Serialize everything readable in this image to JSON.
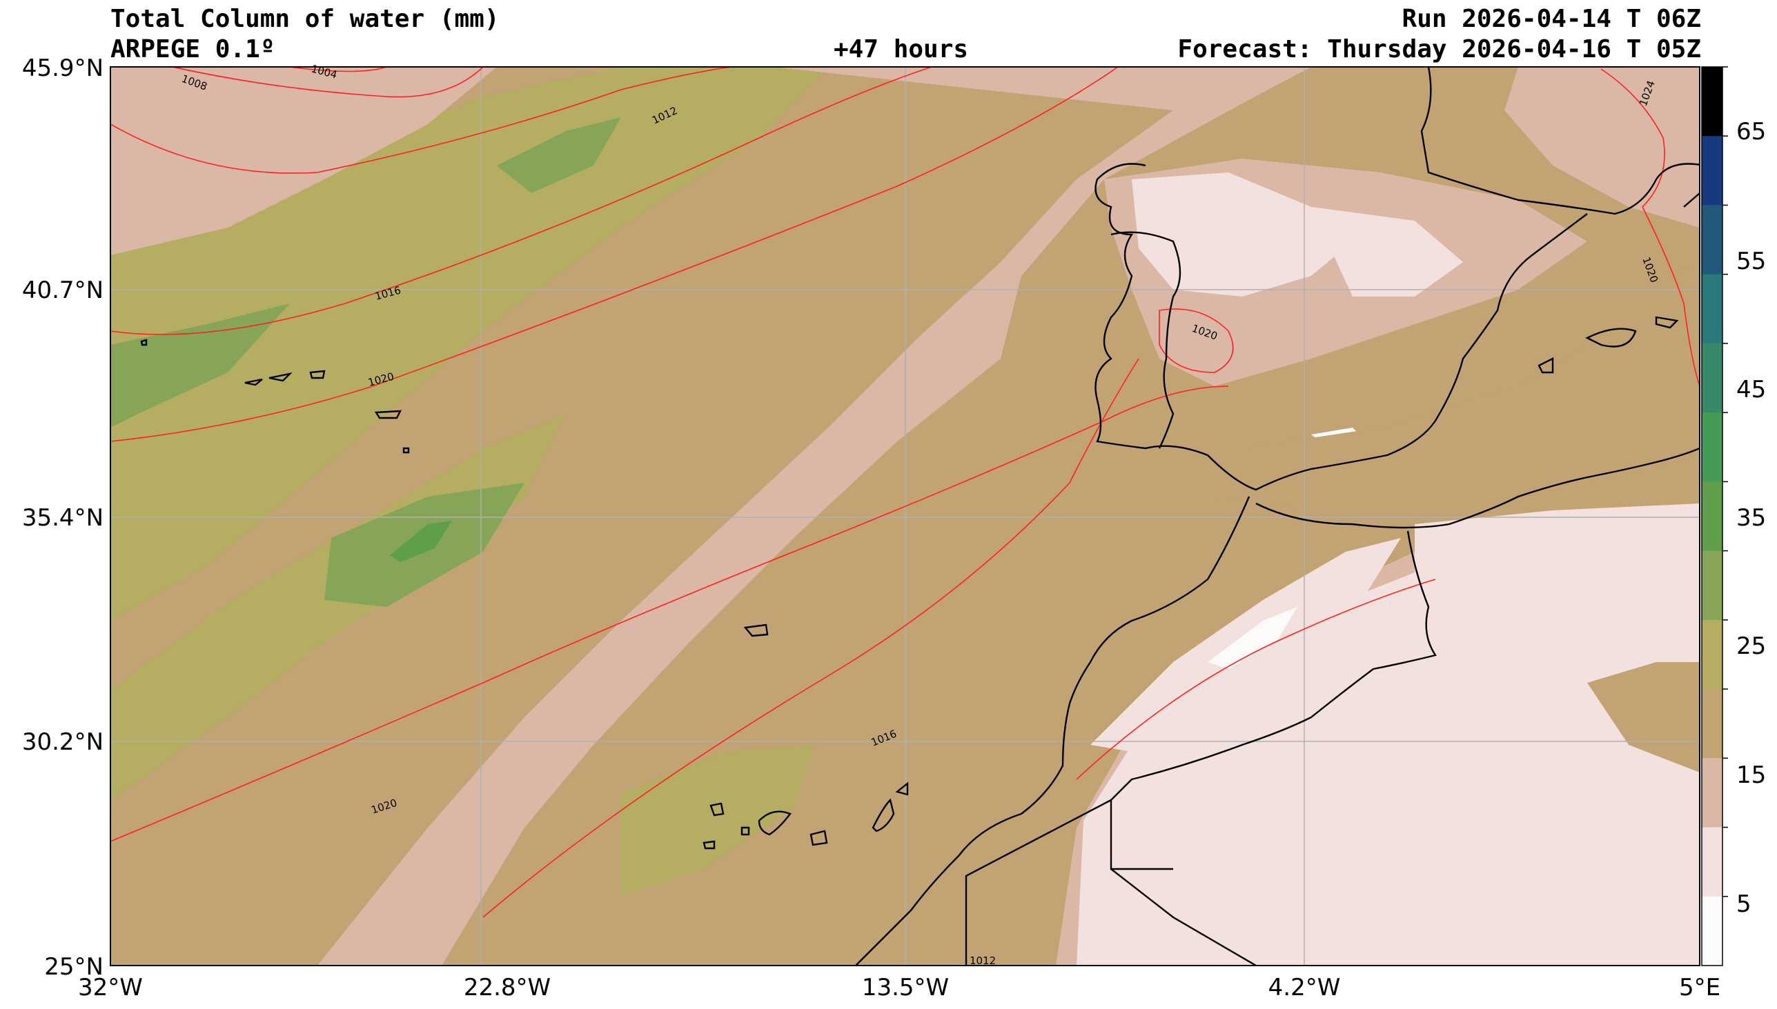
{
  "header": {
    "title": "Total Column of water (mm)",
    "model": "ARPEGE 0.1º",
    "lead": "+47 hours",
    "run": "Run 2026-04-14 T 06Z",
    "forecast": "Forecast: Thursday 2026-04-16 T 05Z"
  },
  "axes": {
    "lat_labels": [
      "45.9°N",
      "40.7°N",
      "35.4°N",
      "30.2°N",
      "25°N"
    ],
    "lon_labels": [
      "32°W",
      "22.8°W",
      "13.5°W",
      "4.2°W",
      "5°E"
    ]
  },
  "colorbar": {
    "labels": [
      "65",
      "55",
      "45",
      "35",
      "25",
      "15",
      "5"
    ],
    "bins": [
      {
        "color": "#000000"
      },
      {
        "color": "#173a7e"
      },
      {
        "color": "#22587a"
      },
      {
        "color": "#2a7a7c"
      },
      {
        "color": "#38896a"
      },
      {
        "color": "#459a55"
      },
      {
        "color": "#5f9f4c"
      },
      {
        "color": "#86a558"
      },
      {
        "color": "#b5ad62"
      },
      {
        "color": "#c2a374"
      },
      {
        "color": "#dbb8a6"
      },
      {
        "color": "#f3e1df"
      },
      {
        "color": "#fdfafa"
      }
    ]
  },
  "isobars": [
    "1008",
    "1004",
    "1012",
    "1016",
    "1020",
    "1020",
    "1020",
    "1016",
    "1024",
    "1020",
    "1012"
  ],
  "colors": {
    "isobar": "#ff2020",
    "coast": "#000000",
    "grid": "#b0b0b0"
  }
}
